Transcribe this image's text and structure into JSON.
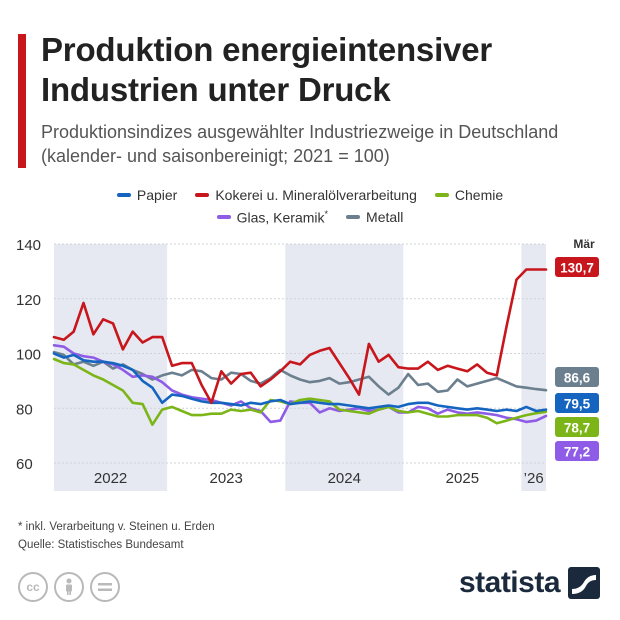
{
  "header": {
    "title": "Produktion energieintensiver Industrien unter Druck",
    "subtitle": "Produktionsindizes ausgewählter Industriezweige in Deutschland (kalender- und saisonbereinigt; 2021 = 100)"
  },
  "legend": {
    "items": [
      {
        "label": "Papier",
        "color": "#1565c0"
      },
      {
        "label": "Kokerei u. Mineralölverarbeitung",
        "color": "#c8161d"
      },
      {
        "label": "Chemie",
        "color": "#7cb518"
      },
      {
        "label": "Glas, Keramik",
        "sup": "*",
        "color": "#8e5ce6"
      },
      {
        "label": "Metall",
        "color": "#6b7f8e"
      }
    ]
  },
  "chart_data": {
    "type": "line",
    "title": "Produktion energieintensiver Industrien unter Druck",
    "xlabel": "",
    "ylabel": "",
    "ylim": [
      60,
      140
    ],
    "y_ticks": [
      60,
      80,
      100,
      120,
      140
    ],
    "year_labels": [
      "2022",
      "2023",
      "2024",
      "2025",
      "’26"
    ],
    "start_month": "2022-01",
    "months": 51,
    "last_month_label": "Mär",
    "grid": true,
    "series": [
      {
        "name": "Papier",
        "color": "#1565c0",
        "end_label": "79,5",
        "values": [
          100,
          98.5,
          99.5,
          97.5,
          97,
          97,
          96.5,
          95.5,
          94,
          90,
          87.5,
          82,
          85,
          84.5,
          83.5,
          82.5,
          82,
          82,
          81.5,
          81,
          82,
          81.5,
          82.5,
          83,
          81.5,
          82,
          82.5,
          82,
          81.5,
          81.5,
          81,
          80.5,
          80,
          80.5,
          81,
          80.5,
          81.5,
          82,
          82,
          81,
          80.5,
          80,
          79.5,
          80,
          79.5,
          79,
          79.5,
          79,
          80.5,
          79,
          79.5
        ]
      },
      {
        "name": "Kokerei u. Mineralölverarbeitung",
        "color": "#c8161d",
        "end_label": "130,7",
        "values": [
          106,
          105,
          108,
          118.5,
          107,
          112.5,
          111,
          101.5,
          108,
          104,
          106,
          106,
          95.5,
          96.5,
          96.5,
          88.5,
          82,
          93.5,
          89,
          92.5,
          93,
          88,
          90.5,
          93.5,
          97,
          96,
          99.5,
          101,
          102,
          96.5,
          91,
          85,
          103.5,
          97,
          99.5,
          95,
          94.5,
          94.5,
          97,
          94,
          95.5,
          94.5,
          93.5,
          96,
          93,
          92,
          110,
          127,
          130.7,
          130.7,
          130.7
        ]
      },
      {
        "name": "Chemie",
        "color": "#7cb518",
        "end_label": "78,7",
        "values": [
          98,
          96.5,
          96,
          94,
          92,
          90.5,
          88.5,
          86.5,
          82,
          81.5,
          74,
          79.5,
          80.5,
          79,
          77.5,
          77.5,
          78,
          78,
          79.5,
          79,
          79.5,
          78.5,
          83,
          82.5,
          81.5,
          83,
          83.5,
          83,
          82.5,
          79.5,
          79,
          78.5,
          78,
          79.5,
          80.5,
          79,
          78.5,
          79,
          78,
          77,
          77,
          77.5,
          77.5,
          77.5,
          76.5,
          74.5,
          75.5,
          76.5,
          77.5,
          78.2,
          78.7
        ]
      },
      {
        "name": "Glas, Keramik",
        "color": "#8e5ce6",
        "end_label": "77,2",
        "values": [
          103,
          102.5,
          100,
          99,
          98.5,
          97,
          96,
          94,
          91.5,
          92,
          91.5,
          89.5,
          86.5,
          85,
          84,
          83.5,
          83,
          82,
          81,
          82.5,
          80,
          79,
          75,
          75.5,
          82.5,
          82,
          82,
          78.5,
          80,
          79,
          79.5,
          80,
          79,
          79.5,
          80.5,
          78.5,
          78.5,
          80.5,
          80,
          78,
          79.5,
          78.5,
          78,
          78.5,
          78,
          77.5,
          76.5,
          76,
          75,
          75.5,
          77.2
        ]
      },
      {
        "name": "Metall",
        "color": "#6b7f8e",
        "end_label": "86,6",
        "values": [
          100.5,
          99.5,
          96,
          97,
          95.5,
          97,
          94.5,
          96,
          94,
          92.5,
          90.5,
          92,
          93,
          92,
          94,
          93.5,
          91,
          90.5,
          93,
          92.5,
          90,
          89,
          91,
          94,
          92,
          90.5,
          89.5,
          90,
          91,
          89,
          89.5,
          90.5,
          91.5,
          88,
          85,
          87.5,
          92.5,
          88.5,
          89,
          86,
          86.5,
          90.5,
          88,
          89,
          90,
          91,
          89.5,
          88,
          87.5,
          87,
          86.6
        ]
      }
    ]
  },
  "footer": {
    "footnote": "* inkl. Verarbeitung v. Steinen u. Erden",
    "source": "Quelle: Statistisches Bundesamt",
    "brand": "statista"
  },
  "icons": [
    "cc-icon",
    "person-icon",
    "equals-icon",
    "statista-logo-icon"
  ]
}
